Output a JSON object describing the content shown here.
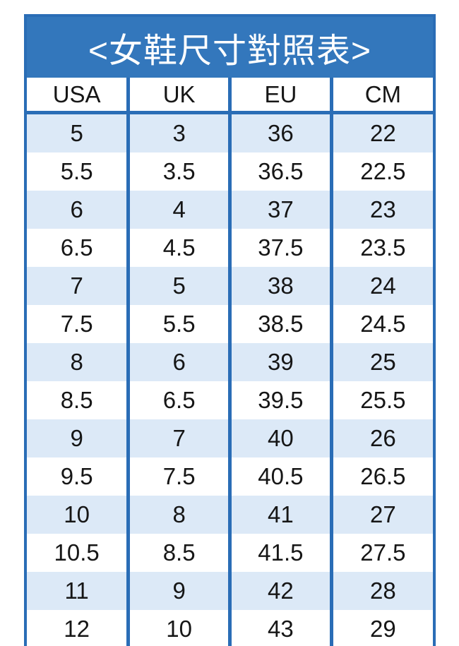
{
  "title": "<女鞋尺寸對照表>",
  "table": {
    "columns": [
      "USA",
      "UK",
      "EU",
      "CM"
    ],
    "rows": [
      [
        "5",
        "3",
        "36",
        "22"
      ],
      [
        "5.5",
        "3.5",
        "36.5",
        "22.5"
      ],
      [
        "6",
        "4",
        "37",
        "23"
      ],
      [
        "6.5",
        "4.5",
        "37.5",
        "23.5"
      ],
      [
        "7",
        "5",
        "38",
        "24"
      ],
      [
        "7.5",
        "5.5",
        "38.5",
        "24.5"
      ],
      [
        "8",
        "6",
        "39",
        "25"
      ],
      [
        "8.5",
        "6.5",
        "39.5",
        "25.5"
      ],
      [
        "9",
        "7",
        "40",
        "26"
      ],
      [
        "9.5",
        "7.5",
        "40.5",
        "26.5"
      ],
      [
        "10",
        "8",
        "41",
        "27"
      ],
      [
        "10.5",
        "8.5",
        "41.5",
        "27.5"
      ],
      [
        "11",
        "9",
        "42",
        "28"
      ],
      [
        "12",
        "10",
        "43",
        "29"
      ]
    ]
  },
  "chart_data": {
    "type": "table",
    "title": "<女鞋尺寸對照表>",
    "categories": [
      "USA",
      "UK",
      "EU",
      "CM"
    ],
    "series": [
      {
        "name": "USA",
        "values": [
          5,
          5.5,
          6,
          6.5,
          7,
          7.5,
          8,
          8.5,
          9,
          9.5,
          10,
          10.5,
          11,
          12
        ]
      },
      {
        "name": "UK",
        "values": [
          3,
          3.5,
          4,
          4.5,
          5,
          5.5,
          6,
          6.5,
          7,
          7.5,
          8,
          8.5,
          9,
          10
        ]
      },
      {
        "name": "EU",
        "values": [
          36,
          36.5,
          37,
          37.5,
          38,
          38.5,
          39,
          39.5,
          40,
          40.5,
          41,
          41.5,
          42,
          43
        ]
      },
      {
        "name": "CM",
        "values": [
          22,
          22.5,
          23,
          23.5,
          24,
          24.5,
          25,
          25.5,
          26,
          26.5,
          27,
          27.5,
          28,
          29
        ]
      }
    ]
  },
  "colors": {
    "banner-blue": "#3377bc",
    "border-blue": "#2a6db6",
    "row-alt-blue": "#dce9f7",
    "title-text": "#ffffff",
    "cell-text": "#161616"
  }
}
